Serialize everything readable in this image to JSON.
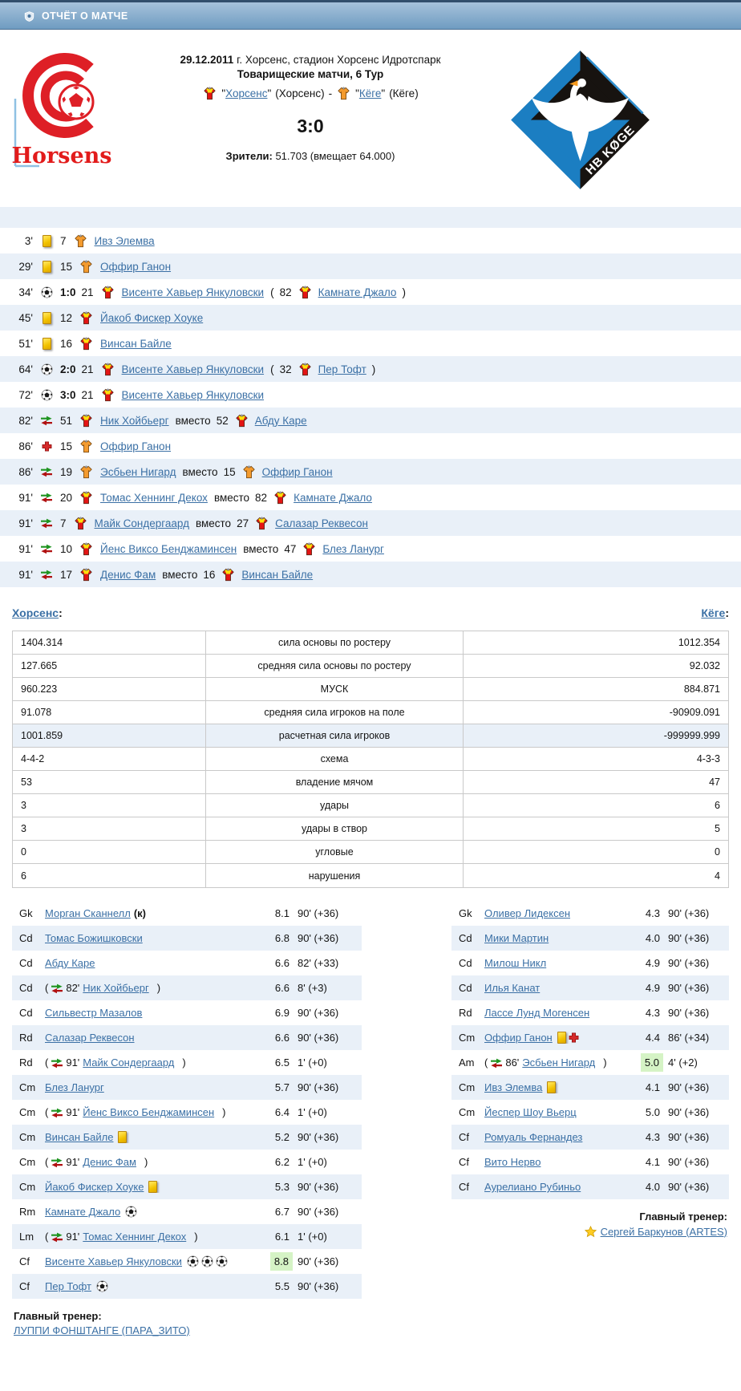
{
  "header": {
    "title": "ОТЧЁТ О МАТЧЕ"
  },
  "misc": {
    "quote": "\"",
    "colon": ":",
    "dash": "-"
  },
  "match": {
    "date": "29.12.2011",
    "venue": "г. Хорсенс, стадион Хорсенс Идротспарк",
    "tournament": "Товарищеские матчи, 6 Тур",
    "home_team": {
      "name": "Хорсенс",
      "suffix": "(Хорсенс)"
    },
    "away_team": {
      "name": "Кёге",
      "suffix": "(Кёге)"
    },
    "score": "3:0",
    "attendance_label": "Зрители:",
    "attendance": "51.703 (вмещает 64.000)",
    "home_logo_text": "Horsens",
    "away_logo_text": "HB KØGE"
  },
  "events": [
    {
      "time": "3'",
      "icon": "yellow-card",
      "score": "",
      "number": "7",
      "shirt": "shirt-away",
      "player": "Ивз Элемва",
      "second": null
    },
    {
      "time": "29'",
      "icon": "yellow-card",
      "score": "",
      "number": "15",
      "shirt": "shirt-away",
      "player": "Оффир Ганон",
      "second": null
    },
    {
      "time": "34'",
      "icon": "goal",
      "score": "1:0",
      "number": "21",
      "shirt": "shirt-home",
      "player": "Висенте Хавьер Янкуловски",
      "second": {
        "pre": "(",
        "number": "82",
        "shirt": "shirt-home",
        "player": "Камнате Джало",
        "post": ")"
      }
    },
    {
      "time": "45'",
      "icon": "yellow-card",
      "score": "",
      "number": "12",
      "shirt": "shirt-home",
      "player": "Йакоб Фискер Хоуке",
      "second": null
    },
    {
      "time": "51'",
      "icon": "yellow-card",
      "score": "",
      "number": "16",
      "shirt": "shirt-home",
      "player": "Винсан Байле",
      "second": null
    },
    {
      "time": "64'",
      "icon": "goal",
      "score": "2:0",
      "number": "21",
      "shirt": "shirt-home",
      "player": "Висенте Хавьер Янкуловски",
      "second": {
        "pre": "(",
        "number": "32",
        "shirt": "shirt-home",
        "player": "Пер Тофт",
        "post": ")"
      }
    },
    {
      "time": "72'",
      "icon": "goal",
      "score": "3:0",
      "number": "21",
      "shirt": "shirt-home",
      "player": "Висенте Хавьер Янкуловски",
      "second": null
    },
    {
      "time": "82'",
      "icon": "sub-arrows",
      "score": "",
      "number": "51",
      "shirt": "shirt-home",
      "player": "Ник Хойбьерг",
      "second": {
        "pre": "вместо",
        "number": "52",
        "shirt": "shirt-home",
        "player": "Абду Каре",
        "post": ""
      }
    },
    {
      "time": "86'",
      "icon": "red-cross",
      "score": "",
      "number": "15",
      "shirt": "shirt-away",
      "player": "Оффир Ганон",
      "second": null
    },
    {
      "time": "86'",
      "icon": "sub-arrows",
      "score": "",
      "number": "19",
      "shirt": "shirt-away",
      "player": "Эсбьен Нигард",
      "second": {
        "pre": "вместо",
        "number": "15",
        "shirt": "shirt-away",
        "player": "Оффир Ганон",
        "post": ""
      }
    },
    {
      "time": "91'",
      "icon": "sub-arrows",
      "score": "",
      "number": "20",
      "shirt": "shirt-home",
      "player": "Томас Хеннинг Декох",
      "second": {
        "pre": "вместо",
        "number": "82",
        "shirt": "shirt-home",
        "player": "Камнате Джало",
        "post": ""
      }
    },
    {
      "time": "91'",
      "icon": "sub-arrows",
      "score": "",
      "number": "7",
      "shirt": "shirt-home",
      "player": "Майк Сондергаард",
      "second": {
        "pre": "вместо",
        "number": "27",
        "shirt": "shirt-home",
        "player": "Салазар Реквесон",
        "post": ""
      }
    },
    {
      "time": "91'",
      "icon": "sub-arrows",
      "score": "",
      "number": "10",
      "shirt": "shirt-home",
      "player": "Йенс Виксо Бенджаминсен",
      "second": {
        "pre": "вместо",
        "number": "47",
        "shirt": "shirt-home",
        "player": "Блез Ланург",
        "post": ""
      }
    },
    {
      "time": "91'",
      "icon": "sub-arrows",
      "score": "",
      "number": "17",
      "shirt": "shirt-home",
      "player": "Денис Фам",
      "second": {
        "pre": "вместо",
        "number": "16",
        "shirt": "shirt-home",
        "player": "Винсан Байле",
        "post": ""
      }
    }
  ],
  "teams_links": {
    "home": "Хорсенс",
    "away": "Кёге"
  },
  "stats": [
    {
      "home": "1404.314",
      "label": "сила основы по ростеру",
      "away": "1012.354",
      "hl": false
    },
    {
      "home": "127.665",
      "label": "средняя сила основы по ростеру",
      "away": "92.032",
      "hl": false
    },
    {
      "home": "960.223",
      "label": "МУСК",
      "away": "884.871",
      "hl": false
    },
    {
      "home": "91.078",
      "label": "средняя сила игроков на поле",
      "away": "-90909.091",
      "hl": false
    },
    {
      "home": "1001.859",
      "label": "расчетная сила игроков",
      "away": "-999999.999",
      "hl": true
    },
    {
      "home": "4-4-2",
      "label": "схема",
      "away": "4-3-3",
      "hl": false
    },
    {
      "home": "53",
      "label": "владение мячом",
      "away": "47",
      "hl": false
    },
    {
      "home": "3",
      "label": "удары",
      "away": "6",
      "hl": false
    },
    {
      "home": "3",
      "label": "удары в створ",
      "away": "5",
      "hl": false
    },
    {
      "home": "0",
      "label": "угловые",
      "away": "0",
      "hl": false
    },
    {
      "home": "6",
      "label": "нарушения",
      "away": "4",
      "hl": false
    }
  ],
  "lineups_meta": {
    "sub_open": "(",
    "sub_close": ")"
  },
  "lineups": {
    "home": {
      "coach_label": "Главный тренер:",
      "coach": "ЛУППИ ФОНШТАНГЕ (ПАРА_ЗИТО)",
      "players": [
        {
          "pos": "Gk",
          "sub": "",
          "subicon": "",
          "name": "Морган Сканнелл",
          "cap": "(к)",
          "icons": [],
          "rating": "8.1",
          "hl": false,
          "minutes": "90' (+36)"
        },
        {
          "pos": "Cd",
          "sub": "",
          "subicon": "",
          "name": "Томас Божишковски",
          "cap": "",
          "icons": [],
          "rating": "6.8",
          "hl": false,
          "minutes": "90' (+36)"
        },
        {
          "pos": "Cd",
          "sub": "",
          "subicon": "",
          "name": "Абду Каре",
          "cap": "",
          "icons": [],
          "rating": "6.6",
          "hl": false,
          "minutes": "82' (+33)"
        },
        {
          "pos": "Cd",
          "sub": "82'",
          "subicon": "sub-arrows",
          "name": "Ник Хойбьерг",
          "cap": "",
          "icons": [],
          "rating": "6.6",
          "hl": false,
          "minutes": "8' (+3)"
        },
        {
          "pos": "Cd",
          "sub": "",
          "subicon": "",
          "name": "Сильвестр Мазалов",
          "cap": "",
          "icons": [],
          "rating": "6.9",
          "hl": false,
          "minutes": "90' (+36)"
        },
        {
          "pos": "Rd",
          "sub": "",
          "subicon": "",
          "name": "Салазар Реквесон",
          "cap": "",
          "icons": [],
          "rating": "6.6",
          "hl": false,
          "minutes": "90' (+36)"
        },
        {
          "pos": "Rd",
          "sub": "91'",
          "subicon": "sub-arrows",
          "name": "Майк Сондергаард",
          "cap": "",
          "icons": [],
          "rating": "6.5",
          "hl": false,
          "minutes": "1' (+0)"
        },
        {
          "pos": "Cm",
          "sub": "",
          "subicon": "",
          "name": "Блез Ланург",
          "cap": "",
          "icons": [],
          "rating": "5.7",
          "hl": false,
          "minutes": "90' (+36)"
        },
        {
          "pos": "Cm",
          "sub": "91'",
          "subicon": "sub-arrows",
          "name": "Йенс Виксо Бенджаминсен",
          "cap": "",
          "icons": [],
          "rating": "6.4",
          "hl": false,
          "minutes": "1' (+0)"
        },
        {
          "pos": "Cm",
          "sub": "",
          "subicon": "",
          "name": "Винсан Байле",
          "cap": "",
          "icons": [
            "yellow-card"
          ],
          "rating": "5.2",
          "hl": false,
          "minutes": "90' (+36)"
        },
        {
          "pos": "Cm",
          "sub": "91'",
          "subicon": "sub-arrows",
          "name": "Денис Фам",
          "cap": "",
          "icons": [],
          "rating": "6.2",
          "hl": false,
          "minutes": "1' (+0)"
        },
        {
          "pos": "Cm",
          "sub": "",
          "subicon": "",
          "name": "Йакоб Фискер Хоуке",
          "cap": "",
          "icons": [
            "yellow-card"
          ],
          "rating": "5.3",
          "hl": false,
          "minutes": "90' (+36)"
        },
        {
          "pos": "Rm",
          "sub": "",
          "subicon": "",
          "name": "Камнате Джало",
          "cap": "",
          "icons": [
            "goal"
          ],
          "rating": "6.7",
          "hl": false,
          "minutes": "90' (+36)"
        },
        {
          "pos": "Lm",
          "sub": "91'",
          "subicon": "sub-arrows",
          "name": "Томас Хеннинг Декох",
          "cap": "",
          "icons": [],
          "rating": "6.1",
          "hl": false,
          "minutes": "1' (+0)"
        },
        {
          "pos": "Cf",
          "sub": "",
          "subicon": "",
          "name": "Висенте Хавьер Янкуловски",
          "cap": "",
          "icons": [
            "goal",
            "goal",
            "goal"
          ],
          "rating": "8.8",
          "hl": true,
          "minutes": "90' (+36)"
        },
        {
          "pos": "Cf",
          "sub": "",
          "subicon": "",
          "name": "Пер Тофт",
          "cap": "",
          "icons": [
            "goal"
          ],
          "rating": "5.5",
          "hl": false,
          "minutes": "90' (+36)"
        }
      ]
    },
    "away": {
      "coach_label": "Главный тренер:",
      "coach": "Сергей Баркунов (ARTES)",
      "players": [
        {
          "pos": "Gk",
          "sub": "",
          "subicon": "",
          "name": "Оливер Лидексен",
          "cap": "",
          "icons": [],
          "rating": "4.3",
          "hl": false,
          "minutes": "90' (+36)"
        },
        {
          "pos": "Cd",
          "sub": "",
          "subicon": "",
          "name": "Мики Мартин",
          "cap": "",
          "icons": [],
          "rating": "4.0",
          "hl": false,
          "minutes": "90' (+36)"
        },
        {
          "pos": "Cd",
          "sub": "",
          "subicon": "",
          "name": "Милош Никл",
          "cap": "",
          "icons": [],
          "rating": "4.9",
          "hl": false,
          "minutes": "90' (+36)"
        },
        {
          "pos": "Cd",
          "sub": "",
          "subicon": "",
          "name": "Илья Канат",
          "cap": "",
          "icons": [],
          "rating": "4.9",
          "hl": false,
          "minutes": "90' (+36)"
        },
        {
          "pos": "Rd",
          "sub": "",
          "subicon": "",
          "name": "Лассе Лунд Могенсен",
          "cap": "",
          "icons": [],
          "rating": "4.3",
          "hl": false,
          "minutes": "90' (+36)"
        },
        {
          "pos": "Cm",
          "sub": "",
          "subicon": "",
          "name": "Оффир Ганон",
          "cap": "",
          "icons": [
            "yellow-card",
            "red-cross"
          ],
          "rating": "4.4",
          "hl": false,
          "minutes": "86' (+34)"
        },
        {
          "pos": "Am",
          "sub": "86'",
          "subicon": "sub-arrows",
          "name": "Эсбьен Нигард",
          "cap": "",
          "icons": [],
          "rating": "5.0",
          "hl": true,
          "minutes": "4' (+2)"
        },
        {
          "pos": "Cm",
          "sub": "",
          "subicon": "",
          "name": "Ивз Элемва",
          "cap": "",
          "icons": [
            "yellow-card"
          ],
          "rating": "4.1",
          "hl": false,
          "minutes": "90' (+36)"
        },
        {
          "pos": "Cm",
          "sub": "",
          "subicon": "",
          "name": "Йеспер Шоу Вьерц",
          "cap": "",
          "icons": [],
          "rating": "5.0",
          "hl": false,
          "minutes": "90' (+36)"
        },
        {
          "pos": "Cf",
          "sub": "",
          "subicon": "",
          "name": "Ромуаль Фернандез",
          "cap": "",
          "icons": [],
          "rating": "4.3",
          "hl": false,
          "minutes": "90' (+36)"
        },
        {
          "pos": "Cf",
          "sub": "",
          "subicon": "",
          "name": "Вито Нерво",
          "cap": "",
          "icons": [],
          "rating": "4.1",
          "hl": false,
          "minutes": "90' (+36)"
        },
        {
          "pos": "Cf",
          "sub": "",
          "subicon": "",
          "name": "Аурелиано Рубиньо",
          "cap": "",
          "icons": [],
          "rating": "4.0",
          "hl": false,
          "minutes": "90' (+36)"
        }
      ]
    }
  }
}
